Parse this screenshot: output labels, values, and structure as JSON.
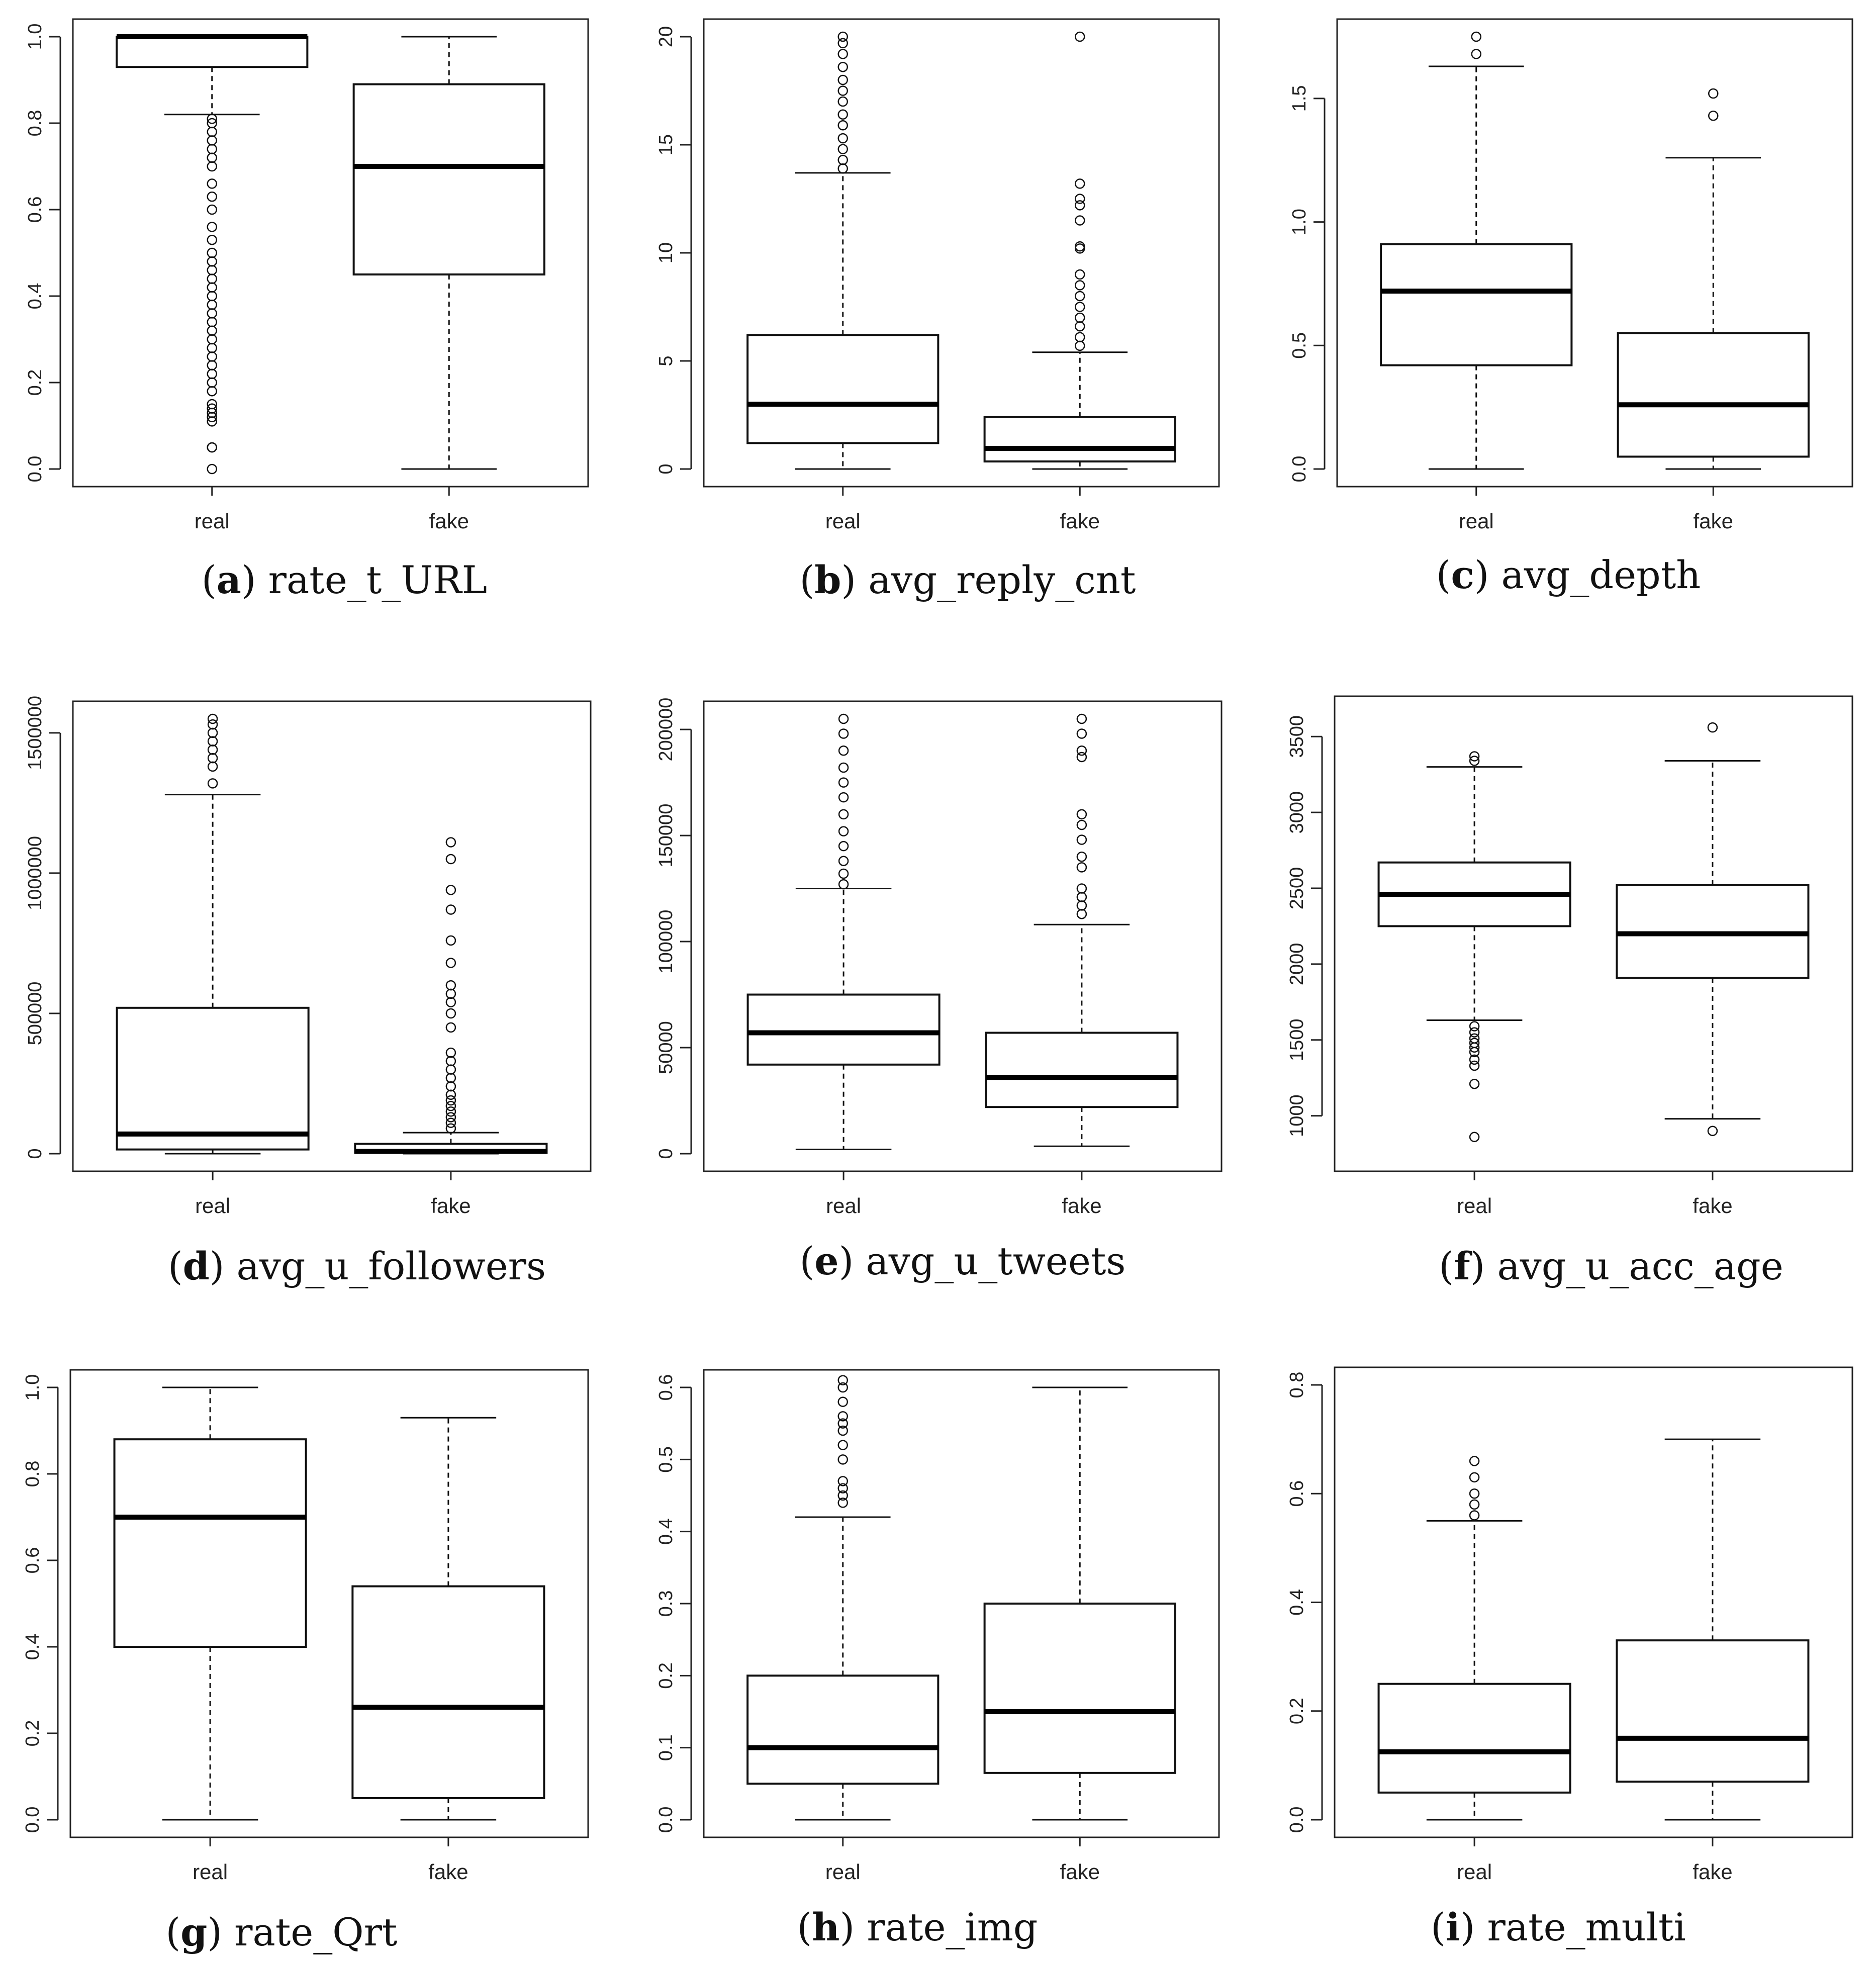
{
  "chart_data": [
    {
      "type": "box",
      "panel_letter": "a",
      "title": "rate_t_URL",
      "categories": [
        "real",
        "fake"
      ],
      "ylim": [
        0,
        1.0
      ],
      "yticks": [
        "0.0",
        "0.2",
        "0.4",
        "0.6",
        "0.8",
        "1.0"
      ],
      "ytick_values": [
        0,
        0.2,
        0.4,
        0.6,
        0.8,
        1.0
      ],
      "boxes": [
        {
          "name": "real",
          "lower_whisker": 0.82,
          "q1": 0.93,
          "median": 1.0,
          "q3": 1.0,
          "upper_whisker": 1.0,
          "outliers": [
            0.0,
            0.05,
            0.05,
            0.11,
            0.12,
            0.13,
            0.14,
            0.15,
            0.18,
            0.2,
            0.22,
            0.24,
            0.26,
            0.28,
            0.3,
            0.32,
            0.34,
            0.36,
            0.38,
            0.4,
            0.42,
            0.44,
            0.46,
            0.48,
            0.5,
            0.53,
            0.56,
            0.6,
            0.63,
            0.66,
            0.7,
            0.72,
            0.74,
            0.76,
            0.78,
            0.8,
            0.81
          ]
        },
        {
          "name": "fake",
          "lower_whisker": 0.0,
          "q1": 0.45,
          "median": 0.7,
          "q3": 0.89,
          "upper_whisker": 1.0,
          "outliers": []
        }
      ]
    },
    {
      "type": "box",
      "panel_letter": "b",
      "title": "avg_reply_cnt",
      "categories": [
        "real",
        "fake"
      ],
      "ylim": [
        0,
        20
      ],
      "yticks": [
        "0",
        "5",
        "10",
        "15",
        "20"
      ],
      "ytick_values": [
        0,
        5,
        10,
        15,
        20
      ],
      "boxes": [
        {
          "name": "real",
          "lower_whisker": 0.0,
          "q1": 1.2,
          "median": 3.0,
          "q3": 6.2,
          "upper_whisker": 13.7,
          "outliers": [
            13.9,
            14.3,
            14.8,
            15.3,
            15.9,
            16.4,
            17.0,
            17.5,
            18.0,
            18.6,
            19.2,
            19.7,
            20.0
          ]
        },
        {
          "name": "fake",
          "lower_whisker": 0.0,
          "q1": 0.35,
          "median": 0.95,
          "q3": 2.4,
          "upper_whisker": 5.4,
          "outliers": [
            5.7,
            6.1,
            6.6,
            7.0,
            7.5,
            8.0,
            8.5,
            9.0,
            10.2,
            10.3,
            11.5,
            12.2,
            12.5,
            13.2,
            20.0
          ]
        }
      ]
    },
    {
      "type": "box",
      "panel_letter": "c",
      "title": "avg_depth",
      "categories": [
        "real",
        "fake"
      ],
      "ylim": [
        0,
        1.75
      ],
      "yticks": [
        "0.0",
        "0.5",
        "1.0",
        "1.5"
      ],
      "ytick_values": [
        0,
        0.5,
        1.0,
        1.5
      ],
      "boxes": [
        {
          "name": "real",
          "lower_whisker": 0.0,
          "q1": 0.42,
          "median": 0.72,
          "q3": 0.91,
          "upper_whisker": 1.63,
          "outliers": [
            1.68,
            1.75
          ]
        },
        {
          "name": "fake",
          "lower_whisker": 0.0,
          "q1": 0.05,
          "median": 0.26,
          "q3": 0.55,
          "upper_whisker": 1.26,
          "outliers": [
            1.43,
            1.52
          ]
        }
      ]
    },
    {
      "type": "box",
      "panel_letter": "d",
      "title": "avg_u_followers",
      "categories": [
        "real",
        "fake"
      ],
      "ylim": [
        0,
        1550000
      ],
      "yticks": [
        "0",
        "500000",
        "1000000",
        "1500000"
      ],
      "ytick_values": [
        0,
        500000,
        1000000,
        1500000
      ],
      "boxes": [
        {
          "name": "real",
          "lower_whisker": 0,
          "q1": 15000,
          "median": 70000,
          "q3": 520000,
          "upper_whisker": 1280000,
          "outliers": [
            1320000,
            1380000,
            1410000,
            1440000,
            1470000,
            1500000,
            1530000,
            1550000
          ]
        },
        {
          "name": "fake",
          "lower_whisker": 0,
          "q1": 3000,
          "median": 8000,
          "q3": 35000,
          "upper_whisker": 75000,
          "outliers": [
            90000,
            110000,
            130000,
            150000,
            170000,
            190000,
            210000,
            240000,
            270000,
            300000,
            330000,
            360000,
            450000,
            500000,
            540000,
            570000,
            600000,
            680000,
            760000,
            870000,
            940000,
            1050000,
            1110000
          ]
        }
      ]
    },
    {
      "type": "box",
      "panel_letter": "e",
      "title": "avg_u_tweets",
      "categories": [
        "real",
        "fake"
      ],
      "ylim": [
        0,
        205000
      ],
      "yticks": [
        "0",
        "50000",
        "100000",
        "150000",
        "200000"
      ],
      "ytick_values": [
        0,
        50000,
        100000,
        150000,
        200000
      ],
      "boxes": [
        {
          "name": "real",
          "lower_whisker": 2000,
          "q1": 42000,
          "median": 57000,
          "q3": 75000,
          "upper_whisker": 125000,
          "outliers": [
            127000,
            132000,
            138000,
            145000,
            152000,
            160000,
            168000,
            175000,
            182000,
            190000,
            198000,
            205000
          ]
        },
        {
          "name": "fake",
          "lower_whisker": 3500,
          "q1": 22000,
          "median": 36000,
          "q3": 57000,
          "upper_whisker": 108000,
          "outliers": [
            113000,
            117000,
            121000,
            125000,
            135000,
            140000,
            148000,
            155000,
            160000,
            187000,
            190000,
            198000,
            205000
          ]
        }
      ]
    },
    {
      "type": "box",
      "panel_letter": "f",
      "title": "avg_u_acc_age",
      "categories": [
        "real",
        "fake"
      ],
      "ylim": [
        750,
        3650
      ],
      "yticks": [
        "1000",
        "1500",
        "2000",
        "2500",
        "3000",
        "3500"
      ],
      "ytick_values": [
        1000,
        1500,
        2000,
        2500,
        3000,
        3500
      ],
      "boxes": [
        {
          "name": "real",
          "lower_whisker": 1630,
          "q1": 2250,
          "median": 2460,
          "q3": 2670,
          "upper_whisker": 3300,
          "outliers": [
            860,
            1210,
            1330,
            1370,
            1420,
            1450,
            1480,
            1510,
            1550,
            1590,
            3340,
            3370
          ]
        },
        {
          "name": "fake",
          "lower_whisker": 980,
          "q1": 1910,
          "median": 2200,
          "q3": 2520,
          "upper_whisker": 3340,
          "outliers": [
            900,
            3560
          ]
        }
      ]
    },
    {
      "type": "box",
      "panel_letter": "g",
      "title": "rate_Qrt",
      "categories": [
        "real",
        "fake"
      ],
      "ylim": [
        0,
        1.0
      ],
      "yticks": [
        "0.0",
        "0.2",
        "0.4",
        "0.6",
        "0.8",
        "1.0"
      ],
      "ytick_values": [
        0,
        0.2,
        0.4,
        0.6,
        0.8,
        1.0
      ],
      "boxes": [
        {
          "name": "real",
          "lower_whisker": 0.0,
          "q1": 0.4,
          "median": 0.7,
          "q3": 0.88,
          "upper_whisker": 1.0,
          "outliers": []
        },
        {
          "name": "fake",
          "lower_whisker": 0.0,
          "q1": 0.05,
          "median": 0.26,
          "q3": 0.54,
          "upper_whisker": 0.93,
          "outliers": []
        }
      ]
    },
    {
      "type": "box",
      "panel_letter": "h",
      "title": "rate_img",
      "categories": [
        "real",
        "fake"
      ],
      "ylim": [
        0,
        0.6
      ],
      "yticks": [
        "0.0",
        "0.1",
        "0.2",
        "0.3",
        "0.4",
        "0.5",
        "0.6"
      ],
      "ytick_values": [
        0,
        0.1,
        0.2,
        0.3,
        0.4,
        0.5,
        0.6
      ],
      "boxes": [
        {
          "name": "real",
          "lower_whisker": 0.0,
          "q1": 0.05,
          "median": 0.1,
          "q3": 0.2,
          "upper_whisker": 0.42,
          "outliers": [
            0.44,
            0.45,
            0.46,
            0.47,
            0.5,
            0.52,
            0.54,
            0.55,
            0.56,
            0.58,
            0.6,
            0.61
          ]
        },
        {
          "name": "fake",
          "lower_whisker": 0.0,
          "q1": 0.065,
          "median": 0.15,
          "q3": 0.3,
          "upper_whisker": 0.6,
          "outliers": []
        }
      ]
    },
    {
      "type": "box",
      "panel_letter": "i",
      "title": "rate_multi",
      "categories": [
        "real",
        "fake"
      ],
      "ylim": [
        0,
        0.8
      ],
      "yticks": [
        "0.0",
        "0.2",
        "0.4",
        "0.6",
        "0.8"
      ],
      "ytick_values": [
        0,
        0.2,
        0.4,
        0.6,
        0.8
      ],
      "boxes": [
        {
          "name": "real",
          "lower_whisker": 0.0,
          "q1": 0.05,
          "median": 0.125,
          "q3": 0.25,
          "upper_whisker": 0.55,
          "outliers": [
            0.56,
            0.58,
            0.6,
            0.63,
            0.66
          ]
        },
        {
          "name": "fake",
          "lower_whisker": 0.0,
          "q1": 0.07,
          "median": 0.15,
          "q3": 0.33,
          "upper_whisker": 0.7,
          "outliers": []
        }
      ]
    }
  ]
}
